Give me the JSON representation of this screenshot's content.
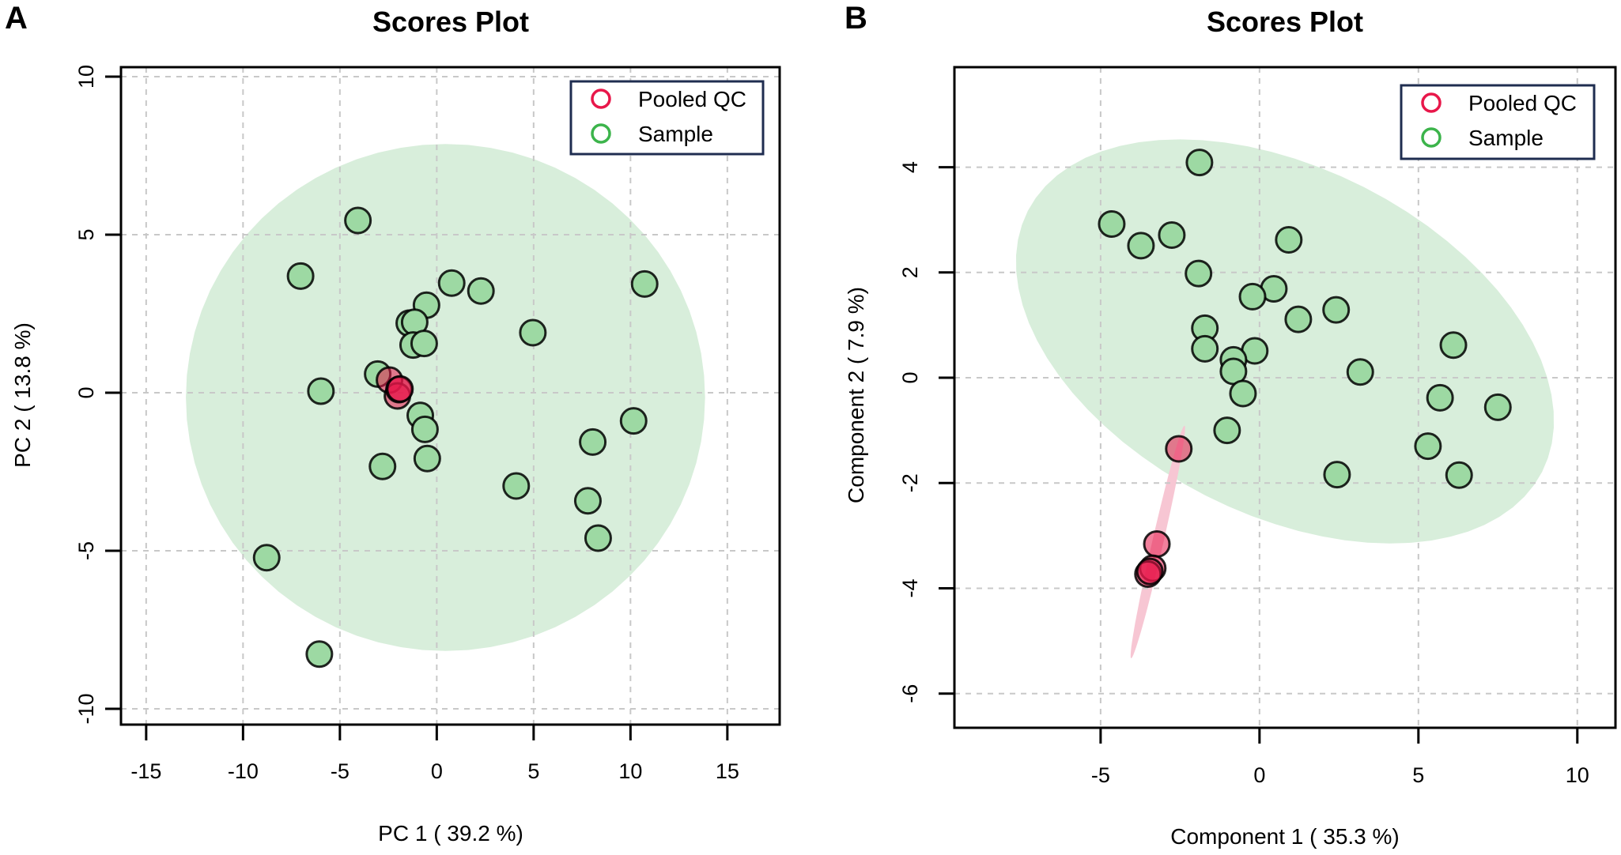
{
  "chart_data": [
    {
      "panel_label": "A",
      "type": "scatter",
      "title": "Scores Plot",
      "xlabel": "PC 1 ( 39.2 %)",
      "ylabel": "PC 2 ( 13.8 %)",
      "xlim": [
        -16.3,
        17.7
      ],
      "ylim": [
        -10.5,
        10.3
      ],
      "xticks": [
        -15,
        -10,
        -5,
        0,
        5,
        10,
        15
      ],
      "yticks": [
        -10,
        -5,
        0,
        5,
        10
      ],
      "xtick_labels": [
        "-15",
        "-10",
        "-5",
        "0",
        "5",
        "10",
        "15"
      ],
      "ytick_labels": [
        "-10",
        "-5",
        "0",
        "5",
        "10"
      ],
      "grid": true,
      "legend": {
        "placement": "top-right",
        "entries": [
          {
            "label": "Pooled QC",
            "color": "#e8174a"
          },
          {
            "label": "Sample",
            "color": "#3cb44b"
          }
        ]
      },
      "ellipses": [
        {
          "group": "Sample",
          "color": "#d8eedb",
          "center": [
            0.45,
            -0.15
          ],
          "half_axis_1": [
            13.4,
            0
          ],
          "half_axis_2": [
            0,
            8.02
          ]
        }
      ],
      "series": [
        {
          "name": "Sample",
          "fill": "#9dd9a3",
          "points": [
            [
              -4.07,
              5.45
            ],
            [
              -7.03,
              3.69
            ],
            [
              0.77,
              3.47
            ],
            [
              2.28,
              3.22
            ],
            [
              10.73,
              3.44
            ],
            [
              -0.53,
              2.77
            ],
            [
              -1.42,
              2.2
            ],
            [
              -1.14,
              2.23
            ],
            [
              -1.22,
              1.51
            ],
            [
              -0.65,
              1.56
            ],
            [
              4.96,
              1.9
            ],
            [
              -3.05,
              0.59
            ],
            [
              -5.98,
              0.05
            ],
            [
              -0.85,
              -0.72
            ],
            [
              -0.61,
              -1.16
            ],
            [
              -0.49,
              -2.08
            ],
            [
              -2.8,
              -2.33
            ],
            [
              10.16,
              -0.89
            ],
            [
              8.05,
              -1.56
            ],
            [
              4.1,
              -2.95
            ],
            [
              7.8,
              -3.42
            ],
            [
              8.33,
              -4.6
            ],
            [
              -8.78,
              -5.22
            ],
            [
              -6.06,
              -8.27
            ]
          ]
        },
        {
          "name": "Pooled QC",
          "fill": "#e8174a",
          "points": [
            [
              -2.44,
              0.4
            ],
            [
              -2.03,
              -0.1
            ],
            [
              -1.95,
              0.1
            ],
            [
              -1.9,
              0.12
            ]
          ]
        }
      ]
    },
    {
      "panel_label": "B",
      "type": "scatter",
      "title": "Scores Plot",
      "xlabel": "Component 1 ( 35.3 %)",
      "ylabel": "Component 2 ( 7.9 %)",
      "xlim": [
        -9.6,
        11.2
      ],
      "ylim": [
        -6.65,
        5.9
      ],
      "xticks": [
        -5,
        0,
        5,
        10
      ],
      "yticks": [
        -6,
        -4,
        -2,
        0,
        2,
        4
      ],
      "xtick_labels": [
        "-5",
        "0",
        "5",
        "10"
      ],
      "ytick_labels": [
        "-6",
        "-4",
        "-2",
        "0",
        "2",
        "4"
      ],
      "grid": true,
      "legend": {
        "placement": "top-right",
        "entries": [
          {
            "label": "Pooled QC",
            "color": "#e8174a"
          },
          {
            "label": "Sample",
            "color": "#3cb44b"
          }
        ]
      },
      "ellipses": [
        {
          "group": "Sample",
          "color": "#d8eedb",
          "center": [
            0.8,
            0.69
          ],
          "half_axis_1": [
            8.09,
            -2.48
          ],
          "half_axis_2": [
            -2.49,
            -2.93
          ]
        },
        {
          "group": "Pooled QC",
          "color": "#f7c6d3",
          "center": [
            -3.2,
            -3.12
          ],
          "half_axis_1": [
            0.84,
            2.21
          ],
          "half_axis_2": [
            0.17,
            -0.024
          ]
        }
      ],
      "series": [
        {
          "name": "Sample",
          "fill": "#9dd9a3",
          "points": [
            [
              -1.89,
              4.09
            ],
            [
              -4.65,
              2.92
            ],
            [
              -3.73,
              2.51
            ],
            [
              -2.76,
              2.71
            ],
            [
              0.92,
              2.62
            ],
            [
              -1.92,
              1.98
            ],
            [
              0.45,
              1.69
            ],
            [
              -0.22,
              1.54
            ],
            [
              1.22,
              1.11
            ],
            [
              2.41,
              1.29
            ],
            [
              -1.72,
              0.94
            ],
            [
              -1.72,
              0.55
            ],
            [
              -0.15,
              0.51
            ],
            [
              -0.82,
              0.34
            ],
            [
              -0.82,
              0.12
            ],
            [
              -0.52,
              -0.3
            ],
            [
              -1.02,
              -1.0
            ],
            [
              3.17,
              0.11
            ],
            [
              6.1,
              0.62
            ],
            [
              5.68,
              -0.38
            ],
            [
              7.5,
              -0.56
            ],
            [
              5.3,
              -1.3
            ],
            [
              6.28,
              -1.85
            ],
            [
              2.44,
              -1.84
            ]
          ]
        },
        {
          "name": "Pooled QC",
          "fill": "#e8174a",
          "points": [
            [
              -2.54,
              -1.35
            ],
            [
              -3.23,
              -3.16
            ],
            [
              -3.36,
              -3.62
            ],
            [
              -3.51,
              -3.73
            ],
            [
              -3.45,
              -3.68
            ]
          ]
        }
      ]
    }
  ]
}
